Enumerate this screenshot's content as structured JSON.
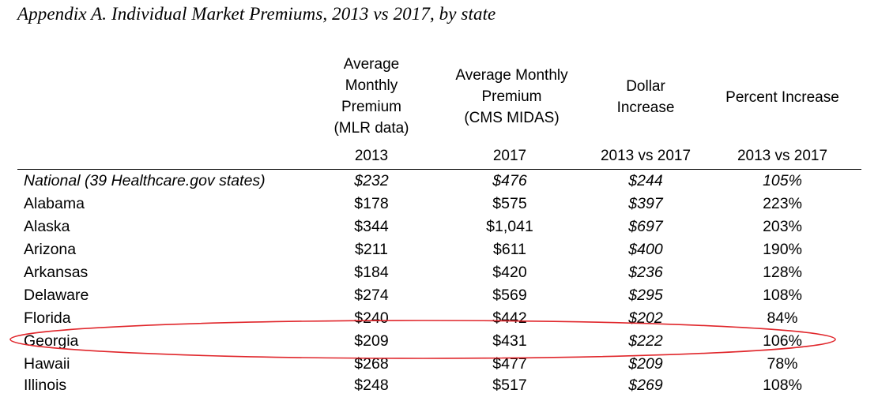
{
  "title": "Appendix A. Individual Market Premiums, 2013 vs 2017, by state",
  "headers": {
    "col1": [
      "Average",
      "Monthly",
      "Premium",
      "(MLR data)"
    ],
    "col2": [
      "Average Monthly",
      "Premium",
      "(CMS MIDAS)"
    ],
    "col3": [
      "Dollar",
      "Increase"
    ],
    "col4": [
      "Percent Increase"
    ]
  },
  "subheaders": {
    "col1": "2013",
    "col2": "2017",
    "col3": "2013 vs 2017",
    "col4": "2013 vs 2017"
  },
  "rows": [
    {
      "state": "National (39 Healthcare.gov states)",
      "prem2013": "$232",
      "prem2017": "$476",
      "dollar": "$244",
      "pct": "105%"
    },
    {
      "state": "Alabama",
      "prem2013": "$178",
      "prem2017": "$575",
      "dollar": "$397",
      "pct": "223%"
    },
    {
      "state": "Alaska",
      "prem2013": "$344",
      "prem2017": "$1,041",
      "dollar": "$697",
      "pct": "203%"
    },
    {
      "state": "Arizona",
      "prem2013": "$211",
      "prem2017": "$611",
      "dollar": "$400",
      "pct": "190%"
    },
    {
      "state": "Arkansas",
      "prem2013": "$184",
      "prem2017": "$420",
      "dollar": "$236",
      "pct": "128%"
    },
    {
      "state": "Delaware",
      "prem2013": "$274",
      "prem2017": "$569",
      "dollar": "$295",
      "pct": "108%"
    },
    {
      "state": "Florida",
      "prem2013": "$240",
      "prem2017": "$442",
      "dollar": "$202",
      "pct": "84%"
    },
    {
      "state": "Georgia",
      "prem2013": "$209",
      "prem2017": "$431",
      "dollar": "$222",
      "pct": "106%"
    },
    {
      "state": "Hawaii",
      "prem2013": "$268",
      "prem2017": "$477",
      "dollar": "$209",
      "pct": "78%"
    },
    {
      "state": "Illinois",
      "prem2013": "$248",
      "prem2017": "$517",
      "dollar": "$269",
      "pct": "108%"
    }
  ],
  "colors": {
    "text": "#000000",
    "highlight_ellipse": "#e0262b"
  },
  "annotation": {
    "highlighted_state": "Georgia",
    "shape": "ellipse"
  }
}
